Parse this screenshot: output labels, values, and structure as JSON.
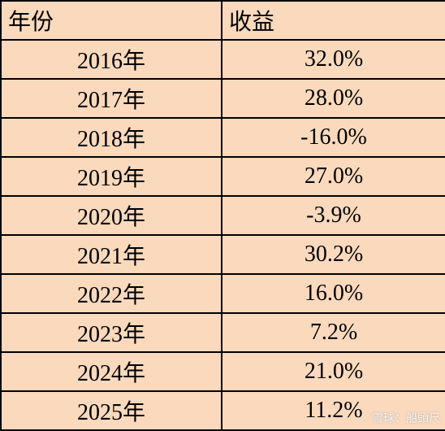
{
  "table": {
    "header": [
      "年份",
      "收益"
    ],
    "rows": [
      [
        "2016年",
        "32.0%"
      ],
      [
        "2017年",
        "28.0%"
      ],
      [
        "2018年",
        "-16.0%"
      ],
      [
        "2019年",
        "27.0%"
      ],
      [
        "2020年",
        "-3.9%"
      ],
      [
        "2021年",
        "30.2%"
      ],
      [
        "2022年",
        "16.0%"
      ],
      [
        "2023年",
        "7.2%"
      ],
      [
        "2024年",
        "21.0%"
      ],
      [
        "2025年",
        "11.2%"
      ]
    ]
  },
  "watermark": "雪球：船頭尺"
}
